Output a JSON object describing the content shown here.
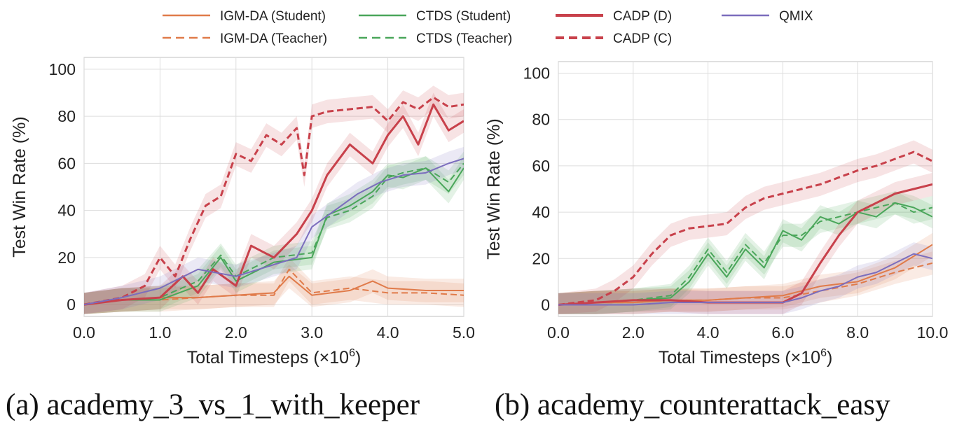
{
  "legend": [
    {
      "name": "IGM-DA (Student)",
      "color": "#e07b4a",
      "dash": false,
      "bold": false
    },
    {
      "name": "IGM-DA (Teacher)",
      "color": "#e07b4a",
      "dash": true,
      "bold": false
    },
    {
      "name": "CTDS (Student)",
      "color": "#4aa65a",
      "dash": false,
      "bold": false
    },
    {
      "name": "CTDS (Teacher)",
      "color": "#4aa65a",
      "dash": true,
      "bold": false
    },
    {
      "name": "CADP (D)",
      "color": "#c8414b",
      "dash": false,
      "bold": true
    },
    {
      "name": "CADP (C)",
      "color": "#c8414b",
      "dash": true,
      "bold": true
    },
    {
      "name": "QMIX",
      "color": "#7b6dbd",
      "dash": false,
      "bold": false
    }
  ],
  "chart_data": [
    {
      "type": "line",
      "caption": "(a) academy_3_vs_1_with_keeper",
      "xlabel": "Total Timesteps (×10^6)",
      "ylabel": "Test Win Rate (%)",
      "xlim": [
        0,
        5
      ],
      "ylim": [
        -5,
        105
      ],
      "xticks": [
        "0.0",
        "1.0",
        "2.0",
        "3.0",
        "4.0",
        "5.0"
      ],
      "yticks": [
        "0",
        "20",
        "40",
        "60",
        "80",
        "100"
      ],
      "grid": true,
      "series": [
        {
          "name": "IGM-DA (Student)",
          "x": [
            0,
            0.5,
            1.0,
            1.5,
            2.0,
            2.5,
            2.7,
            3.0,
            3.5,
            3.8,
            4.0,
            4.5,
            5.0
          ],
          "y": [
            0,
            2,
            3,
            3,
            4,
            5,
            12,
            4,
            6,
            10,
            7,
            6,
            6
          ]
        },
        {
          "name": "IGM-DA (Teacher)",
          "x": [
            0,
            0.5,
            1.0,
            1.5,
            2.0,
            2.5,
            2.7,
            3.0,
            3.5,
            4.0,
            4.5,
            5.0
          ],
          "y": [
            0,
            2,
            2,
            3,
            4,
            4,
            15,
            5,
            7,
            5,
            5,
            4
          ]
        },
        {
          "name": "CTDS (Student)",
          "x": [
            0,
            0.5,
            1.0,
            1.5,
            1.8,
            2.0,
            2.5,
            3.0,
            3.2,
            3.5,
            3.8,
            4.0,
            4.2,
            4.5,
            4.8,
            5.0
          ],
          "y": [
            0,
            2,
            2,
            8,
            20,
            10,
            18,
            20,
            38,
            42,
            48,
            55,
            54,
            58,
            48,
            58
          ]
        },
        {
          "name": "CTDS (Teacher)",
          "x": [
            0,
            0.5,
            1.0,
            1.5,
            1.8,
            2.0,
            2.5,
            3.0,
            3.2,
            3.5,
            3.8,
            4.0,
            4.2,
            4.5,
            4.8,
            5.0
          ],
          "y": [
            0,
            2,
            3,
            10,
            21,
            12,
            20,
            22,
            37,
            40,
            46,
            54,
            56,
            58,
            52,
            60
          ]
        },
        {
          "name": "CADP (D)",
          "x": [
            0,
            0.5,
            1.0,
            1.3,
            1.5,
            1.7,
            2.0,
            2.2,
            2.5,
            2.8,
            3.0,
            3.2,
            3.5,
            3.8,
            4.0,
            4.2,
            4.4,
            4.6,
            4.8,
            5.0
          ],
          "y": [
            0,
            2,
            3,
            12,
            5,
            15,
            8,
            25,
            20,
            30,
            40,
            55,
            68,
            60,
            72,
            80,
            68,
            85,
            74,
            78
          ]
        },
        {
          "name": "CADP (C)",
          "x": [
            0,
            0.5,
            0.8,
            1.0,
            1.2,
            1.4,
            1.6,
            1.8,
            2.0,
            2.2,
            2.4,
            2.6,
            2.8,
            2.9,
            3.0,
            3.2,
            3.5,
            3.8,
            4.0,
            4.2,
            4.4,
            4.6,
            4.8,
            5.0
          ],
          "y": [
            0,
            3,
            8,
            20,
            12,
            28,
            42,
            46,
            64,
            61,
            72,
            68,
            75,
            55,
            80,
            82,
            83,
            84,
            78,
            86,
            83,
            88,
            84,
            85
          ]
        },
        {
          "name": "QMIX",
          "x": [
            0,
            0.5,
            1.0,
            1.5,
            2.0,
            2.5,
            2.8,
            3.0,
            3.3,
            3.6,
            3.9,
            4.2,
            4.5,
            4.8,
            5.0
          ],
          "y": [
            0,
            3,
            7,
            15,
            12,
            17,
            20,
            33,
            40,
            47,
            52,
            55,
            56,
            60,
            62
          ]
        }
      ]
    },
    {
      "type": "line",
      "caption": "(b) academy_counterattack_easy",
      "xlabel": "Total Timesteps (×10^6)",
      "ylabel": "Test Win Rate (%)",
      "xlim": [
        0,
        10
      ],
      "ylim": [
        -5,
        105
      ],
      "xticks": [
        "0.0",
        "2.0",
        "4.0",
        "6.0",
        "8.0",
        "10.0"
      ],
      "yticks": [
        "0",
        "20",
        "40",
        "60",
        "80",
        "100"
      ],
      "grid": true,
      "series": [
        {
          "name": "IGM-DA (Student)",
          "x": [
            0,
            1,
            2,
            3,
            4,
            5,
            6,
            7,
            8,
            9,
            10
          ],
          "y": [
            0,
            1,
            1,
            2,
            2,
            3,
            4,
            8,
            10,
            16,
            26
          ]
        },
        {
          "name": "IGM-DA (Teacher)",
          "x": [
            0,
            1,
            2,
            3,
            4,
            5,
            6,
            7,
            8,
            9,
            10
          ],
          "y": [
            0,
            1,
            1,
            2,
            2,
            3,
            3,
            6,
            9,
            14,
            18
          ]
        },
        {
          "name": "CTDS (Student)",
          "x": [
            0,
            1,
            2,
            3,
            3.5,
            4,
            4.5,
            5,
            5.5,
            6,
            6.5,
            7,
            7.5,
            8,
            8.5,
            9,
            9.5,
            10
          ],
          "y": [
            0,
            1,
            2,
            3,
            10,
            22,
            12,
            24,
            16,
            32,
            28,
            38,
            35,
            40,
            38,
            44,
            42,
            38
          ]
        },
        {
          "name": "CTDS (Teacher)",
          "x": [
            0,
            1,
            2,
            3,
            3.5,
            4,
            4.5,
            5,
            5.5,
            6,
            6.5,
            7,
            7.5,
            8,
            8.5,
            9,
            9.5,
            10
          ],
          "y": [
            0,
            1,
            2,
            4,
            12,
            24,
            14,
            26,
            18,
            30,
            30,
            36,
            38,
            40,
            42,
            44,
            40,
            42
          ]
        },
        {
          "name": "CADP (D)",
          "x": [
            0,
            1,
            2,
            3,
            4,
            5,
            6,
            6.5,
            7,
            7.5,
            8,
            8.5,
            9,
            9.5,
            10
          ],
          "y": [
            0,
            1,
            2,
            2,
            1,
            1,
            1,
            5,
            18,
            30,
            40,
            44,
            48,
            50,
            52
          ]
        },
        {
          "name": "CADP (C)",
          "x": [
            0,
            1,
            1.5,
            2,
            2.5,
            3,
            3.5,
            4,
            4.5,
            5,
            5.5,
            6,
            6.5,
            7,
            7.5,
            8,
            8.5,
            9,
            9.5,
            10
          ],
          "y": [
            0,
            2,
            6,
            12,
            22,
            30,
            33,
            34,
            35,
            42,
            46,
            48,
            50,
            52,
            55,
            58,
            60,
            63,
            66,
            62
          ]
        },
        {
          "name": "QMIX",
          "x": [
            0,
            1,
            2,
            3,
            4,
            5,
            6,
            6.5,
            7,
            7.5,
            8,
            8.5,
            9,
            9.5,
            10
          ],
          "y": [
            0,
            0,
            0,
            1,
            1,
            1,
            1,
            3,
            6,
            8,
            12,
            14,
            18,
            22,
            20
          ]
        }
      ]
    }
  ]
}
